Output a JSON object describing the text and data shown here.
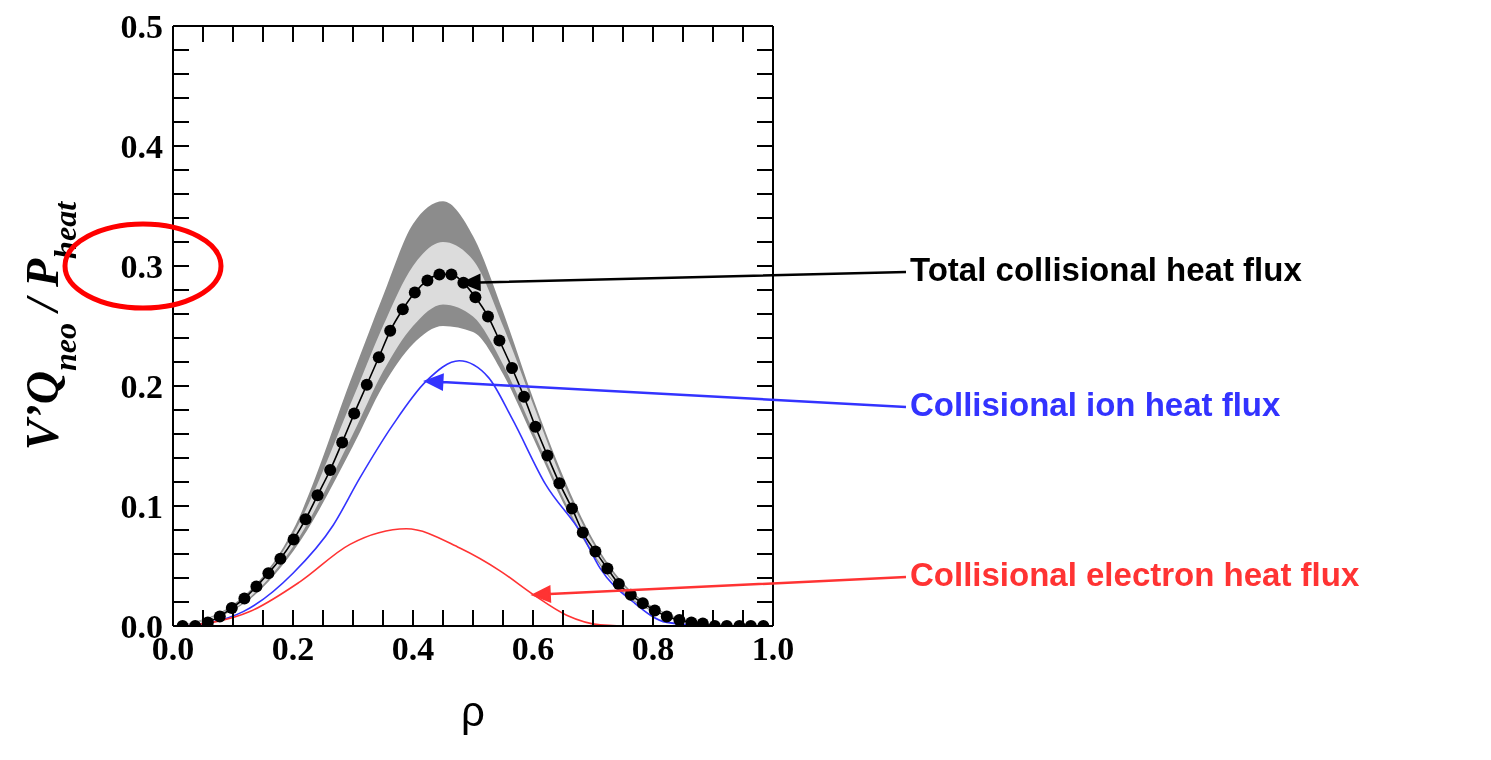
{
  "chart_data": {
    "type": "line",
    "xlabel": "ρ",
    "ylabel": "V’Q$_{neo}$ / P$_{heat}$",
    "xlim": [
      0,
      1
    ],
    "ylim": [
      0,
      0.5
    ],
    "xticks": [
      {
        "value": 0,
        "label": "0.0"
      },
      {
        "value": 0.05,
        "label": null
      },
      {
        "value": 0.1,
        "label": null
      },
      {
        "value": 0.15,
        "label": null
      },
      {
        "value": 0.2,
        "label": "0.2"
      },
      {
        "value": 0.25,
        "label": null
      },
      {
        "value": 0.3,
        "label": null
      },
      {
        "value": 0.35,
        "label": null
      },
      {
        "value": 0.4,
        "label": "0.4"
      },
      {
        "value": 0.45,
        "label": null
      },
      {
        "value": 0.5,
        "label": null
      },
      {
        "value": 0.55,
        "label": null
      },
      {
        "value": 0.6,
        "label": "0.6"
      },
      {
        "value": 0.65,
        "label": null
      },
      {
        "value": 0.7,
        "label": null
      },
      {
        "value": 0.75,
        "label": null
      },
      {
        "value": 0.8,
        "label": "0.8"
      },
      {
        "value": 0.85,
        "label": null
      },
      {
        "value": 0.9,
        "label": null
      },
      {
        "value": 0.95,
        "label": null
      },
      {
        "value": 1,
        "label": "1.0"
      }
    ],
    "yticks": [
      {
        "value": 0,
        "label": "0.0"
      },
      {
        "value": 0.02,
        "label": null
      },
      {
        "value": 0.04,
        "label": null
      },
      {
        "value": 0.06,
        "label": null
      },
      {
        "value": 0.08,
        "label": null
      },
      {
        "value": 0.1,
        "label": "0.1"
      },
      {
        "value": 0.12,
        "label": null
      },
      {
        "value": 0.14,
        "label": null
      },
      {
        "value": 0.16,
        "label": null
      },
      {
        "value": 0.18,
        "label": null
      },
      {
        "value": 0.2,
        "label": "0.2"
      },
      {
        "value": 0.22,
        "label": null
      },
      {
        "value": 0.24,
        "label": null
      },
      {
        "value": 0.26,
        "label": null
      },
      {
        "value": 0.28,
        "label": null
      },
      {
        "value": 0.3,
        "label": "0.3"
      },
      {
        "value": 0.32,
        "label": null
      },
      {
        "value": 0.34,
        "label": null
      },
      {
        "value": 0.36,
        "label": null
      },
      {
        "value": 0.38,
        "label": null
      },
      {
        "value": 0.4,
        "label": "0.4"
      },
      {
        "value": 0.42,
        "label": null
      },
      {
        "value": 0.44,
        "label": null
      },
      {
        "value": 0.46,
        "label": null
      },
      {
        "value": 0.48,
        "label": null
      },
      {
        "value": 0.5,
        "label": "0.5"
      }
    ],
    "series": [
      {
        "type": "area",
        "color": "#8c8c8c",
        "x": [
          0,
          0.1,
          0.2,
          0.3,
          0.35,
          0.4,
          0.45,
          0.5,
          0.55,
          0.6,
          0.65,
          0.7,
          0.75,
          0.8,
          0.9,
          1
        ],
        "values": [
          null,
          null,
          null,
          null,
          null,
          null,
          null,
          null,
          null,
          null,
          null,
          null,
          null,
          null,
          null,
          null
        ],
        "lower": [
          0,
          0.013,
          0.062,
          0.15,
          0.2,
          0.235,
          0.25,
          0.245,
          0.21,
          0.157,
          0.103,
          0.059,
          0.028,
          0.012,
          0.002,
          0
        ],
        "upper": [
          0,
          0.018,
          0.08,
          0.21,
          0.275,
          0.335,
          0.354,
          0.325,
          0.262,
          0.19,
          0.125,
          0.072,
          0.036,
          0.016,
          0.002,
          0
        ]
      },
      {
        "type": "area",
        "color": "#dcdcdc",
        "x": [
          0,
          0.1,
          0.2,
          0.3,
          0.35,
          0.4,
          0.45,
          0.5,
          0.55,
          0.6,
          0.65,
          0.7,
          0.75,
          0.8,
          0.9,
          1
        ],
        "values": [
          null,
          null,
          null,
          null,
          null,
          null,
          null,
          null,
          null,
          null,
          null,
          null,
          null,
          null,
          null,
          null
        ],
        "lower": [
          0,
          0.014,
          0.066,
          0.16,
          0.212,
          0.25,
          0.268,
          0.258,
          0.218,
          0.163,
          0.107,
          0.061,
          0.029,
          0.013,
          0.002,
          0
        ],
        "upper": [
          0,
          0.016,
          0.076,
          0.19,
          0.25,
          0.3,
          0.32,
          0.305,
          0.25,
          0.185,
          0.12,
          0.069,
          0.034,
          0.015,
          0.002,
          0
        ]
      },
      {
        "type": "line",
        "color": "#000000",
        "marker": "circle",
        "x": [
          0.016,
          0.037,
          0.058,
          0.078,
          0.098,
          0.119,
          0.139,
          0.159,
          0.179,
          0.201,
          0.221,
          0.241,
          0.262,
          0.282,
          0.302,
          0.323,
          0.343,
          0.362,
          0.383,
          0.403,
          0.424,
          0.444,
          0.464,
          0.484,
          0.504,
          0.525,
          0.544,
          0.565,
          0.585,
          0.604,
          0.624,
          0.644,
          0.665,
          0.683,
          0.704,
          0.724,
          0.743,
          0.763,
          0.783,
          0.803,
          0.823,
          0.844,
          0.864,
          0.883,
          0.903,
          0.923,
          0.944,
          0.963,
          0.984
        ],
        "values": [
          0,
          0,
          0.003,
          0.008,
          0.015,
          0.023,
          0.033,
          0.044,
          0.056,
          0.072,
          0.089,
          0.109,
          0.13,
          0.153,
          0.177,
          0.201,
          0.224,
          0.246,
          0.264,
          0.278,
          0.288,
          0.293,
          0.293,
          0.286,
          0.274,
          0.258,
          0.238,
          0.215,
          0.191,
          0.166,
          0.142,
          0.119,
          0.098,
          0.078,
          0.062,
          0.048,
          0.035,
          0.026,
          0.019,
          0.013,
          0.008,
          0.005,
          0.003,
          0.002,
          0,
          0,
          0,
          0,
          0
        ]
      },
      {
        "type": "line",
        "color": "#3333ff",
        "x": [
          0.02,
          0.117,
          0.2,
          0.267,
          0.311,
          0.367,
          0.422,
          0.477,
          0.526,
          0.565,
          0.621,
          0.682,
          0.712,
          0.767,
          0.823,
          0.9,
          1
        ],
        "values": [
          0,
          0.012,
          0.044,
          0.084,
          0.123,
          0.168,
          0.204,
          0.221,
          0.207,
          0.173,
          0.118,
          0.076,
          0.048,
          0.02,
          0.003,
          0,
          0
        ]
      },
      {
        "type": "line",
        "color": "#ff3333",
        "x": [
          0.02,
          0.128,
          0.212,
          0.295,
          0.389,
          0.478,
          0.545,
          0.601,
          0.656,
          0.712,
          0.767,
          1
        ],
        "values": [
          0,
          0.012,
          0.037,
          0.068,
          0.081,
          0.065,
          0.046,
          0.026,
          0.009,
          0.001,
          0,
          0
        ]
      }
    ],
    "annotations": [
      "Total collisional heat flux",
      "Collisional ion heat flux",
      "Collisional electron heat flux"
    ]
  }
}
